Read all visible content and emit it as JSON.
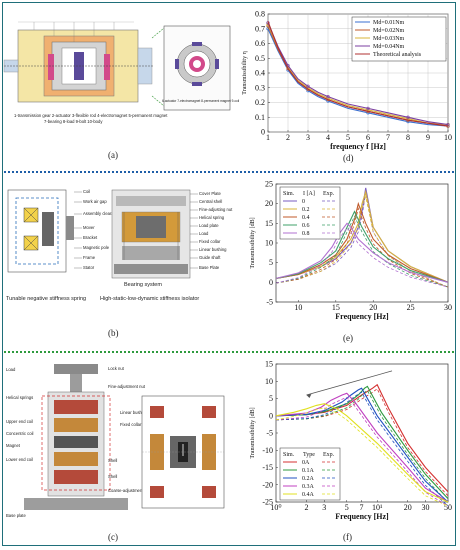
{
  "panels": {
    "a": {
      "label": "(a)",
      "caption_lines": [
        "1-transmission gear 2-actuator 3-flexible rod 4-electromagnet 5-permanent magnet",
        "7-bearing 8-load 9-bolt 10-body"
      ],
      "inset_caption": "6-actuator 7-electromagnet 8-permanent magnet 9-coil"
    },
    "b": {
      "label": "(b)",
      "left_title": "Tunable negative stiffness spring",
      "right_title": "High-static-low-dynamic stiffness isolator",
      "left_labels": [
        "Coil",
        "Work air gap",
        "Assembly clearance",
        "Mover",
        "Bracket",
        "Magnetic pole",
        "Frame",
        "Stator"
      ],
      "right_labels": [
        "Cover Plate",
        "Central shell",
        "Fine-adjusting nut",
        "Helical spring",
        "Load plate",
        "Load",
        "Fixed collar",
        "Linear bushing",
        "Guide shaft",
        "Base Plate"
      ],
      "bottom_label": "Bearing system"
    },
    "c": {
      "label": "(c)",
      "labels_left": [
        "Load",
        "Helical springs",
        "Upper end coil",
        "Concentric coil",
        "Magnet",
        "Lower end coil",
        "Base plate"
      ],
      "labels_right": [
        "Lock nut",
        "Fine-adjustment nut",
        "Linear bushing",
        "Fixed collar",
        "Shell",
        "Shell",
        "Coarse-adjustment collar"
      ]
    },
    "d": {
      "label": "(d)"
    },
    "e": {
      "label": "(e)"
    },
    "f": {
      "label": "(f)"
    }
  },
  "colors": {
    "sep_top": "#1f5fa8",
    "sep_bottom": "#2e9a3e",
    "frame": "#1f6f7a"
  },
  "chart_data": [
    {
      "id": "d",
      "type": "line",
      "xlabel": "frequency f [Hz]",
      "ylabel": "Transmissibility η",
      "xlim": [
        1,
        10
      ],
      "ylim": [
        0,
        0.8
      ],
      "xticks": [
        "1",
        "2",
        "3",
        "4",
        "5",
        "6",
        "7",
        "8",
        "9",
        "10"
      ],
      "yticks": [
        "0",
        "0.1",
        "0.2",
        "0.3",
        "0.4",
        "0.5",
        "0.6",
        "0.7",
        "0.8"
      ],
      "grid": true,
      "legend_position": "top-right",
      "series": [
        {
          "name": "Md=0.01Nm",
          "color": "#3a6fd0",
          "marker": "circle",
          "x": [
            1,
            1.5,
            2,
            2.5,
            3,
            3.5,
            4,
            5,
            6,
            7,
            8,
            9,
            10
          ],
          "y": [
            0.7,
            0.55,
            0.42,
            0.33,
            0.28,
            0.24,
            0.21,
            0.16,
            0.13,
            0.1,
            0.07,
            0.05,
            0.04
          ]
        },
        {
          "name": "Md=0.02Nm",
          "color": "#c05a2a",
          "marker": "circle",
          "x": [
            1,
            1.5,
            2,
            2.5,
            3,
            3.5,
            4,
            5,
            6,
            7,
            8,
            9,
            10
          ],
          "y": [
            0.72,
            0.56,
            0.43,
            0.34,
            0.29,
            0.25,
            0.22,
            0.17,
            0.14,
            0.11,
            0.08,
            0.06,
            0.04
          ]
        },
        {
          "name": "Md=0.03Nm",
          "color": "#d9b43a",
          "marker": "triangle",
          "x": [
            1,
            1.5,
            2,
            2.5,
            3,
            3.5,
            4,
            5,
            6,
            7,
            8,
            9,
            10
          ],
          "y": [
            0.73,
            0.57,
            0.44,
            0.35,
            0.3,
            0.26,
            0.23,
            0.18,
            0.15,
            0.12,
            0.09,
            0.06,
            0.05
          ]
        },
        {
          "name": "Md=0.04Nm",
          "color": "#7b3fa0",
          "marker": "triangle",
          "x": [
            1,
            1.5,
            2,
            2.5,
            3,
            3.5,
            4,
            5,
            6,
            7,
            8,
            9,
            10
          ],
          "y": [
            0.74,
            0.58,
            0.45,
            0.36,
            0.31,
            0.27,
            0.24,
            0.19,
            0.16,
            0.13,
            0.1,
            0.07,
            0.05
          ]
        },
        {
          "name": "Theoretical analysis",
          "color": "#b03030",
          "marker": "none",
          "x": [
            1,
            1.5,
            2,
            2.5,
            3,
            3.5,
            4,
            5,
            6,
            7,
            8,
            9,
            10
          ],
          "y": [
            0.75,
            0.57,
            0.43,
            0.34,
            0.29,
            0.25,
            0.22,
            0.17,
            0.14,
            0.11,
            0.08,
            0.06,
            0.04
          ]
        }
      ]
    },
    {
      "id": "e",
      "type": "line",
      "xlabel": "Frequency [Hz]",
      "ylabel": "Transmissibility [dB]",
      "xlim": [
        7,
        30
      ],
      "ylim": [
        -5,
        25
      ],
      "xticks": [
        "10",
        "15",
        "20",
        "25",
        "30"
      ],
      "xtick_values": [
        10,
        15,
        20,
        25,
        30
      ],
      "yticks": [
        "-5",
        "0",
        "5",
        "10",
        "15",
        "20",
        "25"
      ],
      "legend_header": [
        "Sim.",
        "I [A]",
        "Exp."
      ],
      "legend_position": "top-left",
      "series": [
        {
          "name": "0",
          "color": "#7a5cc0",
          "x": [
            7,
            10,
            13,
            15,
            17,
            18,
            18.5,
            19,
            20,
            22,
            25,
            30
          ],
          "y": [
            1,
            2,
            4,
            6,
            10,
            14,
            18,
            24,
            14,
            8,
            4,
            0
          ]
        },
        {
          "name": "0.2",
          "color": "#d9b43a",
          "x": [
            7,
            10,
            13,
            15,
            17,
            18,
            18.5,
            19,
            20,
            22,
            25,
            30
          ],
          "y": [
            1,
            2,
            4,
            6.5,
            11,
            15,
            20,
            23,
            14,
            8,
            4,
            0
          ]
        },
        {
          "name": "0.4",
          "color": "#c05a2a",
          "x": [
            7,
            10,
            13,
            15,
            16.5,
            17.5,
            18,
            19,
            20,
            22,
            25,
            30
          ],
          "y": [
            1,
            2,
            4.5,
            7,
            11,
            16,
            20,
            15,
            11,
            7,
            3.5,
            0
          ]
        },
        {
          "name": "0.6",
          "color": "#3fa06a",
          "x": [
            7,
            10,
            13,
            15,
            16,
            17,
            17.5,
            18.5,
            20,
            22,
            25,
            30
          ],
          "y": [
            1,
            2.2,
            5,
            8,
            12,
            16,
            18,
            14,
            9,
            6,
            3,
            0
          ]
        },
        {
          "name": "0.8",
          "color": "#b070d0",
          "x": [
            7,
            10,
            13,
            14.5,
            15.5,
            16.5,
            17,
            18,
            20,
            22,
            25,
            30
          ],
          "y": [
            1,
            2.4,
            5.5,
            9,
            12.5,
            15,
            14,
            11,
            7.5,
            5,
            2.5,
            0
          ]
        }
      ]
    },
    {
      "id": "f",
      "type": "line",
      "xscale": "log",
      "xlabel": "Frequency [Hz]",
      "ylabel": "Transmissibility [dB]",
      "xlim": [
        1,
        50
      ],
      "ylim": [
        -25,
        15
      ],
      "xticks": [
        "10⁰",
        "2",
        "3",
        "5",
        "7",
        "10¹",
        "20",
        "30",
        "50"
      ],
      "xtick_values": [
        1,
        2,
        3,
        5,
        7,
        10,
        20,
        30,
        50
      ],
      "yticks": [
        "-25",
        "-20",
        "-15",
        "-10",
        "-5",
        "0",
        "5",
        "10",
        "15"
      ],
      "legend_header": [
        "Sim.",
        "Type",
        "Exp."
      ],
      "legend_position": "bottom-left",
      "series": [
        {
          "name": "0A",
          "color": "#d43030",
          "x": [
            1,
            2,
            3,
            5,
            7,
            9,
            10,
            13,
            20,
            30,
            50
          ],
          "y": [
            0,
            0.3,
            1,
            3,
            6,
            8,
            9,
            2,
            -8,
            -15,
            -22
          ]
        },
        {
          "name": "0.1A",
          "color": "#2e9a3e",
          "x": [
            1,
            2,
            3,
            5,
            6.5,
            7.5,
            8,
            11,
            20,
            30,
            50
          ],
          "y": [
            0,
            0.3,
            1.2,
            3.5,
            6,
            8,
            8.5,
            1,
            -10,
            -17,
            -24
          ]
        },
        {
          "name": "0.2A",
          "color": "#2050c0",
          "x": [
            1,
            2,
            3,
            4.5,
            5.5,
            6.5,
            7,
            10,
            20,
            30,
            50
          ],
          "y": [
            0,
            0.4,
            1.5,
            4,
            6,
            7.5,
            8,
            0,
            -12,
            -19,
            -25
          ]
        },
        {
          "name": "0.3A",
          "color": "#c040c0",
          "x": [
            1,
            2,
            2.8,
            3.5,
            4.5,
            5,
            6,
            10,
            20,
            30,
            50
          ],
          "y": [
            0,
            0.8,
            2.5,
            4.5,
            6,
            6.5,
            4,
            -5,
            -15,
            -21,
            -25
          ]
        },
        {
          "name": "0.4A",
          "color": "#e0e020",
          "x": [
            1,
            1.5,
            2,
            2.5,
            3,
            4,
            5,
            10,
            20,
            30,
            50
          ],
          "y": [
            0,
            1,
            2,
            3,
            3.5,
            2,
            0,
            -8,
            -17,
            -22,
            -25
          ]
        }
      ]
    }
  ]
}
